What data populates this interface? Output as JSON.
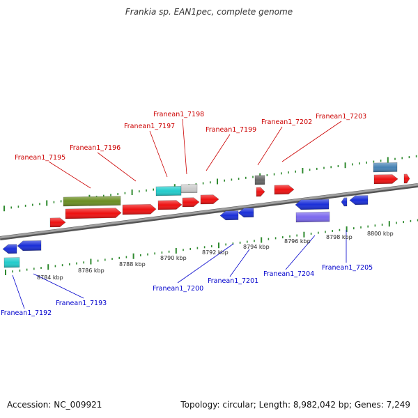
{
  "title": "Frankia sp. EAN1pec, complete genome",
  "footer": {
    "accession": "Accession: NC_009921",
    "topology": "Topology: circular; Length: 8,982,042 bp; Genes: 7,249"
  },
  "colors": {
    "backbone": "#8a8a8a",
    "ticks": "#2f8a2f",
    "forward_label": "#cc0000",
    "reverse_label": "#0000cc",
    "gene_red": "#ee1111",
    "gene_blue": "#1a2fd8",
    "gene_olive": "#6b8e23",
    "gene_cyan": "#22cccc",
    "gene_grey": "#cccccc",
    "gene_dark": "#666666",
    "gene_steel": "#4682b4",
    "gene_purple": "#7b68ee"
  },
  "scale_labels": [
    "8784 kbp",
    "8786 kbp",
    "8788 kbp",
    "8790 kbp",
    "8792 kbp",
    "8794 kbp",
    "8796 kbp",
    "8798 kbp",
    "8800 kbp"
  ],
  "forward_labels": [
    "Franean1_7195",
    "Franean1_7196",
    "Franean1_7197",
    "Franean1_7198",
    "Franean1_7199",
    "Franean1_7202",
    "Franean1_7203"
  ],
  "reverse_labels": [
    "Franean1_7192",
    "Franean1_7193",
    "Franean1_7200",
    "Franean1_7201",
    "Franean1_7204",
    "Franean1_7205"
  ]
}
